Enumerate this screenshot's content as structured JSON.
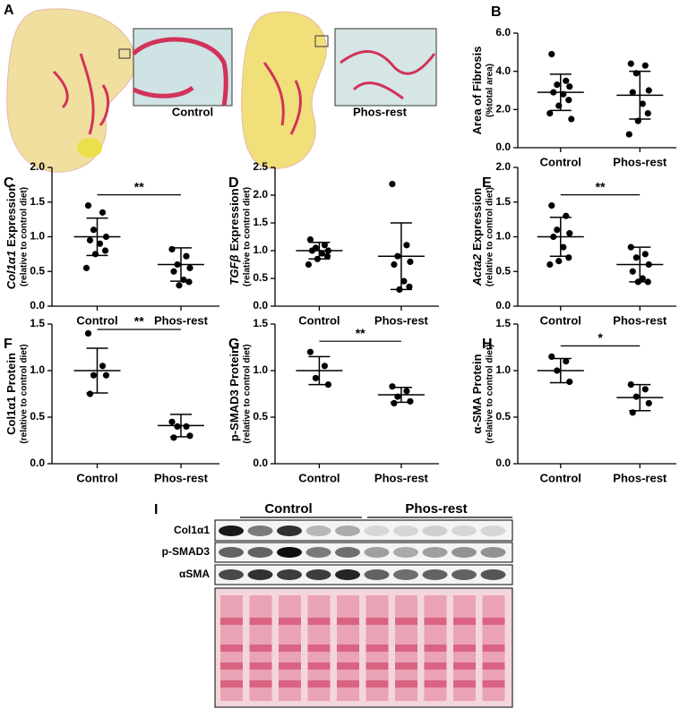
{
  "panel_a": {
    "letter": "A",
    "captions": [
      "Control",
      "Phos-rest"
    ]
  },
  "panel_i": {
    "letter": "I",
    "groups": [
      "Control",
      "Phos-rest"
    ],
    "rows": [
      "Col1α1",
      "p-SMAD3",
      "αSMA"
    ]
  },
  "chart_data": [
    {
      "type": "scatter",
      "letter": "B",
      "ylabel": "Area of Fibrosis",
      "ylabel_sub": "(%total area)",
      "categories": [
        "Control",
        "Phos-rest"
      ],
      "points": [
        [
          4.9,
          3.5,
          3.3,
          3.2,
          2.9,
          2.8,
          2.5,
          2.2,
          1.8,
          1.5
        ],
        [
          4.4,
          4.3,
          3.9,
          3.0,
          2.9,
          2.3,
          1.8,
          1.4,
          0.7
        ]
      ],
      "mean": [
        2.9,
        2.75
      ],
      "sd": [
        0.95,
        1.25
      ],
      "ylim": [
        0,
        6
      ],
      "yticks": [
        {
          "value": 0,
          "label": "0.0"
        },
        {
          "value": 2,
          "label": "2.0"
        },
        {
          "value": 4,
          "label": "4.0"
        },
        {
          "value": 6,
          "label": "6.0"
        }
      ]
    },
    {
      "type": "scatter",
      "letter": "C",
      "ylabel_italic": "Col1α1",
      "ylabel": "Expression",
      "ylabel_sub": "(relative to control diet)",
      "categories": [
        "Control",
        "Phos-rest"
      ],
      "points": [
        [
          1.45,
          1.35,
          1.1,
          1.0,
          0.95,
          0.9,
          0.8,
          0.75,
          0.55
        ],
        [
          0.82,
          0.72,
          0.6,
          0.55,
          0.5,
          0.38,
          0.35,
          0.3
        ]
      ],
      "mean": [
        1.0,
        0.6
      ],
      "sd": [
        0.27,
        0.24
      ],
      "ylim": [
        0,
        2
      ],
      "yticks": [
        {
          "value": 0,
          "label": "0.0"
        },
        0.5,
        {
          "value": 1,
          "label": "1.0"
        },
        1.5,
        {
          "value": 2,
          "label": "2.0"
        }
      ],
      "significance": "**"
    },
    {
      "type": "scatter",
      "letter": "D",
      "ylabel_italic": "TGFβ",
      "ylabel": "Expression",
      "ylabel_sub": "(relative to control diet)",
      "categories": [
        "Control",
        "Phos-rest"
      ],
      "points": [
        [
          1.2,
          1.1,
          1.05,
          1.0,
          1.0,
          0.95,
          0.9,
          0.85,
          0.75
        ],
        [
          2.2,
          1.1,
          0.9,
          0.8,
          0.75,
          0.45,
          0.35,
          0.3
        ]
      ],
      "mean": [
        1.0,
        0.9
      ],
      "sd": [
        0.15,
        0.6
      ],
      "ylim": [
        0,
        2.5
      ],
      "yticks": [
        {
          "value": 0,
          "label": "0.0"
        },
        0.5,
        {
          "value": 1,
          "label": "1.0"
        },
        1.5,
        {
          "value": 2,
          "label": "2.0"
        },
        2.5
      ]
    },
    {
      "type": "scatter",
      "letter": "E",
      "ylabel_italic": "Acta2",
      "ylabel": "Expression",
      "ylabel_sub": "(relative to control diet)",
      "categories": [
        "Control",
        "Phos-rest"
      ],
      "points": [
        [
          1.45,
          1.3,
          1.1,
          1.05,
          1.0,
          0.85,
          0.7,
          0.65,
          0.6
        ],
        [
          0.85,
          0.75,
          0.7,
          0.6,
          0.5,
          0.4,
          0.35,
          0.35
        ]
      ],
      "mean": [
        1.0,
        0.6
      ],
      "sd": [
        0.28,
        0.25
      ],
      "ylim": [
        0,
        2
      ],
      "yticks": [
        {
          "value": 0,
          "label": "0.0"
        },
        0.5,
        {
          "value": 1,
          "label": "1.0"
        },
        1.5,
        {
          "value": 2,
          "label": "2.0"
        }
      ],
      "significance": "**"
    },
    {
      "type": "scatter",
      "letter": "F",
      "ylabel": "Col1α1 Protein",
      "ylabel_sub": "(relative to control diet)",
      "categories": [
        "Control",
        "Phos-rest"
      ],
      "points": [
        [
          1.4,
          1.05,
          0.95,
          0.95,
          0.75
        ],
        [
          0.45,
          0.4,
          0.4,
          0.3,
          0.28
        ]
      ],
      "mean": [
        1.0,
        0.41
      ],
      "sd": [
        0.24,
        0.12
      ],
      "ylim": [
        0,
        1.5
      ],
      "yticks": [
        {
          "value": 0,
          "label": "0.0"
        },
        0.5,
        {
          "value": 1,
          "label": "1.0"
        },
        1.5
      ],
      "significance": "**"
    },
    {
      "type": "scatter",
      "letter": "G",
      "ylabel": "p-SMAD3 Protein",
      "ylabel_sub": "(relative to control diet)",
      "categories": [
        "Control",
        "Phos-rest"
      ],
      "points": [
        [
          1.2,
          1.05,
          0.92,
          0.85
        ],
        [
          0.83,
          0.78,
          0.72,
          0.67,
          0.65
        ]
      ],
      "mean": [
        1.0,
        0.74
      ],
      "sd": [
        0.15,
        0.08
      ],
      "ylim": [
        0,
        1.5
      ],
      "yticks": [
        {
          "value": 0,
          "label": "0.0"
        },
        0.5,
        {
          "value": 1,
          "label": "1.0"
        },
        1.5
      ],
      "significance": "**"
    },
    {
      "type": "scatter",
      "letter": "H",
      "ylabel": "α-SMA Protein",
      "ylabel_sub": "(relative to control diet)",
      "categories": [
        "Control",
        "Phos-rest"
      ],
      "points": [
        [
          1.15,
          1.1,
          1.0,
          0.88
        ],
        [
          0.85,
          0.8,
          0.72,
          0.65,
          0.55
        ]
      ],
      "mean": [
        1.0,
        0.71
      ],
      "sd": [
        0.13,
        0.14
      ],
      "ylim": [
        0,
        1.5
      ],
      "yticks": [
        {
          "value": 0,
          "label": "0.0"
        },
        0.5,
        {
          "value": 1,
          "label": "1.0"
        },
        1.5
      ],
      "significance": "*"
    }
  ]
}
